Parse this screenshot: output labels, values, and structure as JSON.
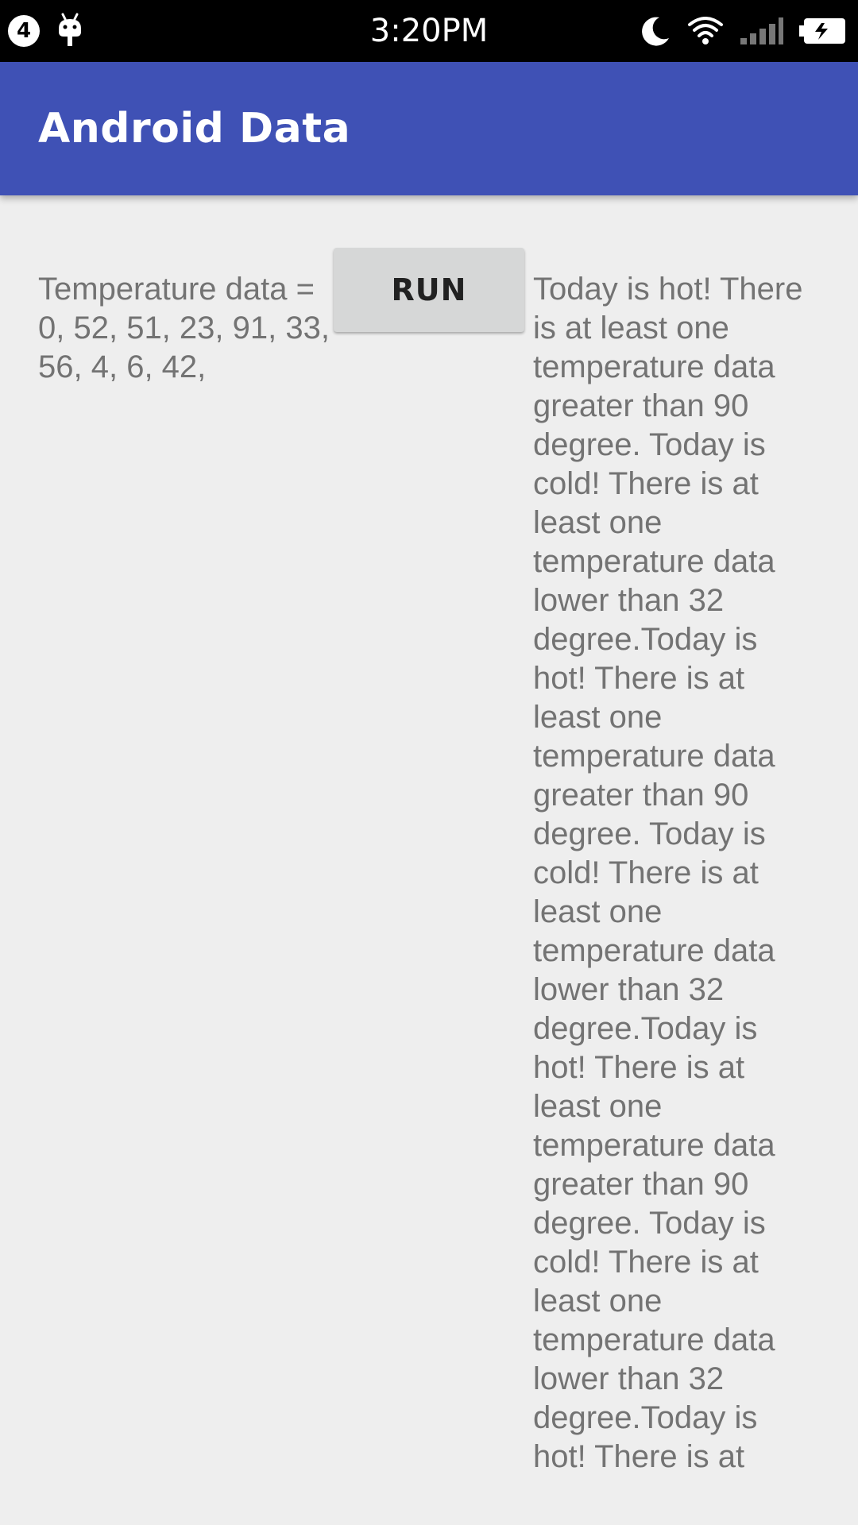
{
  "status_bar": {
    "notification_count": "4",
    "time": "3:20PM",
    "icons": [
      "android-debug-icon",
      "do-not-disturb-moon-icon",
      "wifi-icon",
      "cell-signal-icon",
      "battery-charging-icon"
    ]
  },
  "app_bar": {
    "title": "Android Data",
    "color": "#3f51b5"
  },
  "content": {
    "temperature_label": "Temperature data = 0, 52, 51, 23, 91, 33, 56, 4, 6, 42,",
    "run_button_label": "RUN",
    "result_text": "Today is hot! There is at least one temperature data greater than 90 degree. Today is cold! There is at least one temperature data lower than 32 degree.Today is hot! There is at least one temperature data greater than 90 degree. Today is cold! There is at least one temperature data lower than 32 degree.Today is hot! There is at least one temperature data greater than 90 degree. Today is cold! There is at least one temperature data lower than 32 degree.Today is hot! There is at"
  }
}
